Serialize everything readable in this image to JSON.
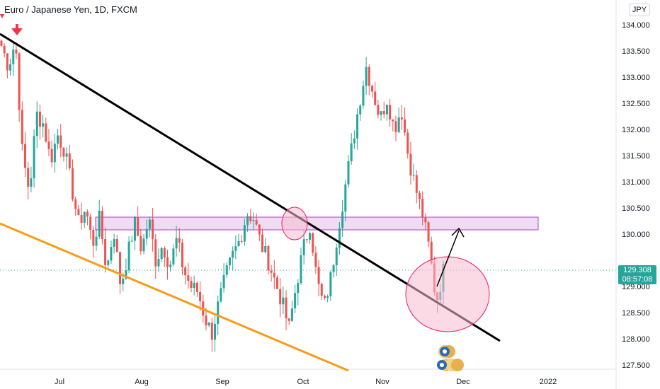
{
  "header": {
    "title": "Euro / Japanese Yen, 1D, FXCM",
    "currency_button": "JPY"
  },
  "price_tag": {
    "price": "129.308",
    "countdown": "08:57:08"
  },
  "colors": {
    "up": "#26a69a",
    "down": "#ef5350",
    "trendline_black": "#000000",
    "trendline_orange": "#f89b1a",
    "zone_fill": "#e1bee7",
    "zone_stroke": "#ab47bc",
    "circle_fill": "#f8bbd0",
    "circle_stroke": "#e91e63",
    "arrow_red": "#f23645"
  },
  "chart_data": {
    "type": "candlestick",
    "symbol": "EUR/JPY",
    "timeframe": "1D",
    "y_ticks": [
      "134.000",
      "133.500",
      "133.000",
      "132.500",
      "132.000",
      "131.500",
      "131.000",
      "130.500",
      "130.000",
      "129.500",
      "129.000",
      "128.500",
      "128.000",
      "127.500"
    ],
    "x_ticks": [
      "Jul",
      "Aug",
      "Sep",
      "Oct",
      "Nov",
      "Dec",
      "2022"
    ],
    "ylim": [
      127.4,
      134.2
    ],
    "current_price": 129.308,
    "close_path": [
      [
        "Jun",
        133.6
      ],
      [
        "Jun",
        133.2
      ],
      [
        "Jun",
        133.7
      ],
      [
        "Jun",
        131.5
      ],
      [
        "Jun",
        130.8
      ],
      [
        "Jun",
        132.3
      ],
      [
        "Jun",
        132.1
      ],
      [
        "Jun",
        131.4
      ],
      [
        "Jun",
        131.9
      ],
      [
        "Jun",
        131.6
      ],
      [
        "Jun",
        130.9
      ],
      [
        "Jun",
        130.2
      ],
      [
        "Jul",
        130.5
      ],
      [
        "Jul",
        129.8
      ],
      [
        "Jul",
        130.3
      ],
      [
        "Jul",
        129.3
      ],
      [
        "Jul",
        130.1
      ],
      [
        "Jul",
        129.0
      ],
      [
        "Jul",
        129.6
      ],
      [
        "Jul",
        130.2
      ],
      [
        "Jul",
        129.7
      ],
      [
        "Jul",
        130.3
      ],
      [
        "Jul",
        129.5
      ],
      [
        "Aug",
        129.8
      ],
      [
        "Aug",
        129.4
      ],
      [
        "Aug",
        129.9
      ],
      [
        "Aug",
        129.3
      ],
      [
        "Aug",
        129.0
      ],
      [
        "Aug",
        128.9
      ],
      [
        "Aug",
        128.4
      ],
      [
        "Aug",
        128.1
      ],
      [
        "Aug",
        128.7
      ],
      [
        "Aug",
        129.2
      ],
      [
        "Aug",
        129.6
      ],
      [
        "Sep",
        129.9
      ],
      [
        "Sep",
        130.4
      ],
      [
        "Sep",
        130.3
      ],
      [
        "Sep",
        129.8
      ],
      [
        "Sep",
        129.5
      ],
      [
        "Sep",
        129.1
      ],
      [
        "Sep",
        128.7
      ],
      [
        "Sep",
        128.2
      ],
      [
        "Sep",
        129.0
      ],
      [
        "Sep",
        129.7
      ],
      [
        "Sep",
        130.2
      ],
      [
        "Oct",
        129.1
      ],
      [
        "Oct",
        128.6
      ],
      [
        "Oct",
        129.2
      ],
      [
        "Oct",
        130.1
      ],
      [
        "Oct",
        130.9
      ],
      [
        "Oct",
        131.7
      ],
      [
        "Oct",
        132.5
      ],
      [
        "Oct",
        133.2
      ],
      [
        "Oct",
        132.7
      ],
      [
        "Oct",
        132.2
      ],
      [
        "Nov",
        132.6
      ],
      [
        "Nov",
        132.0
      ],
      [
        "Nov",
        132.4
      ],
      [
        "Nov",
        131.5
      ],
      [
        "Nov",
        130.9
      ],
      [
        "Nov",
        130.4
      ],
      [
        "Nov",
        129.7
      ],
      [
        "Nov",
        128.7
      ],
      [
        "Nov",
        129.3
      ]
    ],
    "annotations": {
      "zone_price_range": [
        130.05,
        130.3
      ],
      "black_trendline": "descending resistance",
      "orange_trendline": "descending support",
      "projection_arrow_target": 130.1
    }
  }
}
